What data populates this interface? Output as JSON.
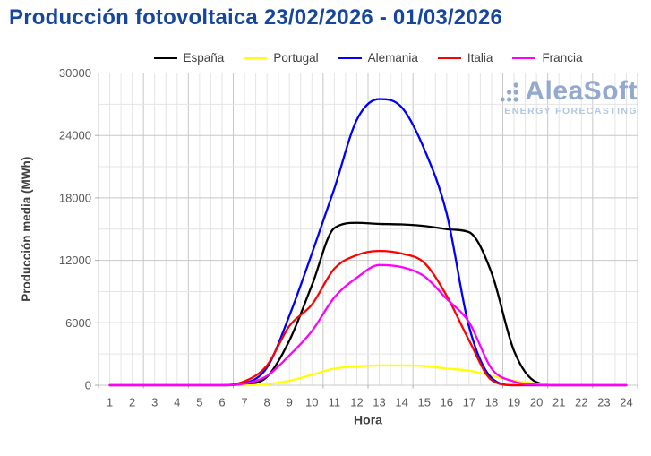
{
  "title": "Producción fotovoltaica 23/02/2026 - 01/03/2026",
  "logo": {
    "name": "AleaSoft",
    "tagline": "ENERGY FORECASTING"
  },
  "colors": {
    "title": "#17479D",
    "grid_minor": "#E4E4E4",
    "grid_major": "#C8C8C8",
    "plot_border": "#C8C8C8",
    "tick": "#ADADAD",
    "tick_label": "#595959",
    "axis_title": "#3F3F3F",
    "logo_name": "#93AACE",
    "logo_tagline": "#B3C7E0"
  },
  "chart_data": {
    "type": "line",
    "title": "Producción fotovoltaica 23/02/2026 - 01/03/2026",
    "xlabel": "Hora",
    "ylabel": "Producción media (MWh)",
    "x": [
      1,
      2,
      3,
      4,
      5,
      6,
      7,
      8,
      9,
      10,
      11,
      12,
      13,
      14,
      15,
      16,
      17,
      18,
      19,
      20,
      21,
      22,
      23,
      24
    ],
    "xlim": [
      0.5,
      24.5
    ],
    "ylim": [
      0,
      30000
    ],
    "yticks": [
      0,
      6000,
      12000,
      18000,
      24000,
      30000
    ],
    "grid": {
      "horizontal_minor_step": 3000,
      "vertical_step_hours": 0.5,
      "vertical_major_every_hours": 2
    },
    "legend_position": "top",
    "units": "MWh",
    "series": [
      {
        "name": "España",
        "color": "#000000",
        "values": [
          0,
          0,
          0,
          0,
          0,
          0,
          100,
          800,
          4300,
          9600,
          15100,
          15600,
          15500,
          15450,
          15300,
          15000,
          14700,
          10800,
          3300,
          300,
          0,
          0,
          0,
          0
        ]
      },
      {
        "name": "Portugal",
        "color": "#FFFF00",
        "values": [
          0,
          0,
          0,
          0,
          0,
          0,
          0,
          100,
          430,
          1000,
          1600,
          1800,
          1900,
          1900,
          1850,
          1600,
          1400,
          900,
          430,
          150,
          0,
          0,
          0,
          0
        ]
      },
      {
        "name": "Alemania",
        "color": "#0000FF",
        "values": [
          0,
          0,
          0,
          0,
          0,
          0,
          200,
          1700,
          6700,
          12650,
          18900,
          25500,
          27500,
          26700,
          22700,
          16500,
          5600,
          700,
          0,
          0,
          0,
          0,
          0,
          0
        ]
      },
      {
        "name": "Italia",
        "color": "#FF0000",
        "values": [
          0,
          0,
          0,
          0,
          0,
          0,
          370,
          1900,
          5700,
          7750,
          11200,
          12500,
          12900,
          12650,
          11770,
          8600,
          4300,
          500,
          0,
          0,
          0,
          0,
          0,
          0
        ]
      },
      {
        "name": "Francia",
        "color": "#FF00FF",
        "values": [
          0,
          0,
          0,
          0,
          0,
          0,
          150,
          900,
          2870,
          5200,
          8440,
          10330,
          11550,
          11350,
          10470,
          8300,
          6050,
          1600,
          350,
          50,
          0,
          0,
          0,
          0
        ]
      }
    ]
  }
}
